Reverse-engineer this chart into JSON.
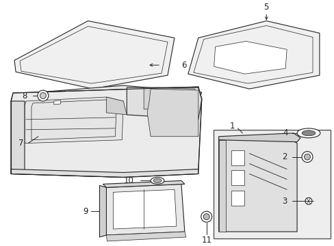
{
  "bg_color": "#ffffff",
  "line_color": "#222222",
  "label_color": "#000000",
  "fig_w": 4.89,
  "fig_h": 3.6,
  "dpi": 100
}
